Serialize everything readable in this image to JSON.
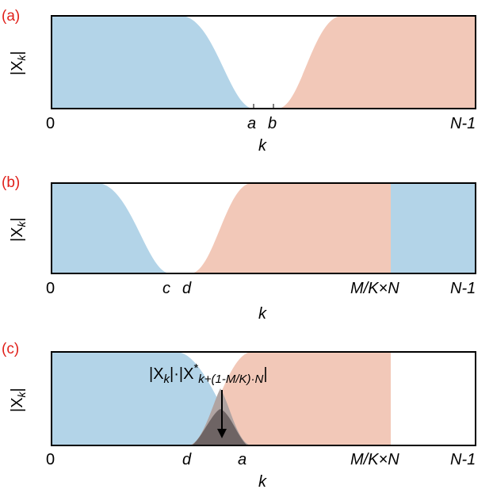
{
  "panels": [
    {
      "label": "(a)",
      "ylabel": "|X",
      "ysub": "k",
      "xlabel": "k",
      "ticks": {
        "zero": "0",
        "t1": "a",
        "t2": "b",
        "end": "N-1"
      }
    },
    {
      "label": "(b)",
      "ylabel": "|X",
      "ysub": "k",
      "xlabel": "k",
      "ticks": {
        "zero": "0",
        "t1": "c",
        "t2": "d",
        "t3": "M/K×N",
        "end": "N-1"
      }
    },
    {
      "label": "(c)",
      "ylabel": "|X",
      "ysub": "k",
      "xlabel": "k",
      "ticks": {
        "zero": "0",
        "t1": "d",
        "t2": "a",
        "t3": "M/K×N",
        "end": "N-1"
      },
      "annotation": {
        "left": "|X",
        "left_sub": "k",
        "mid": "|·|X",
        "sup": "*",
        "sub": "k+(1-M/K)·N",
        "right": "|"
      }
    }
  ],
  "colors": {
    "blue": "#b3d4e8",
    "pink": "#f2c8b8",
    "gray": "#a89c9a",
    "dark": "#6e6464"
  }
}
